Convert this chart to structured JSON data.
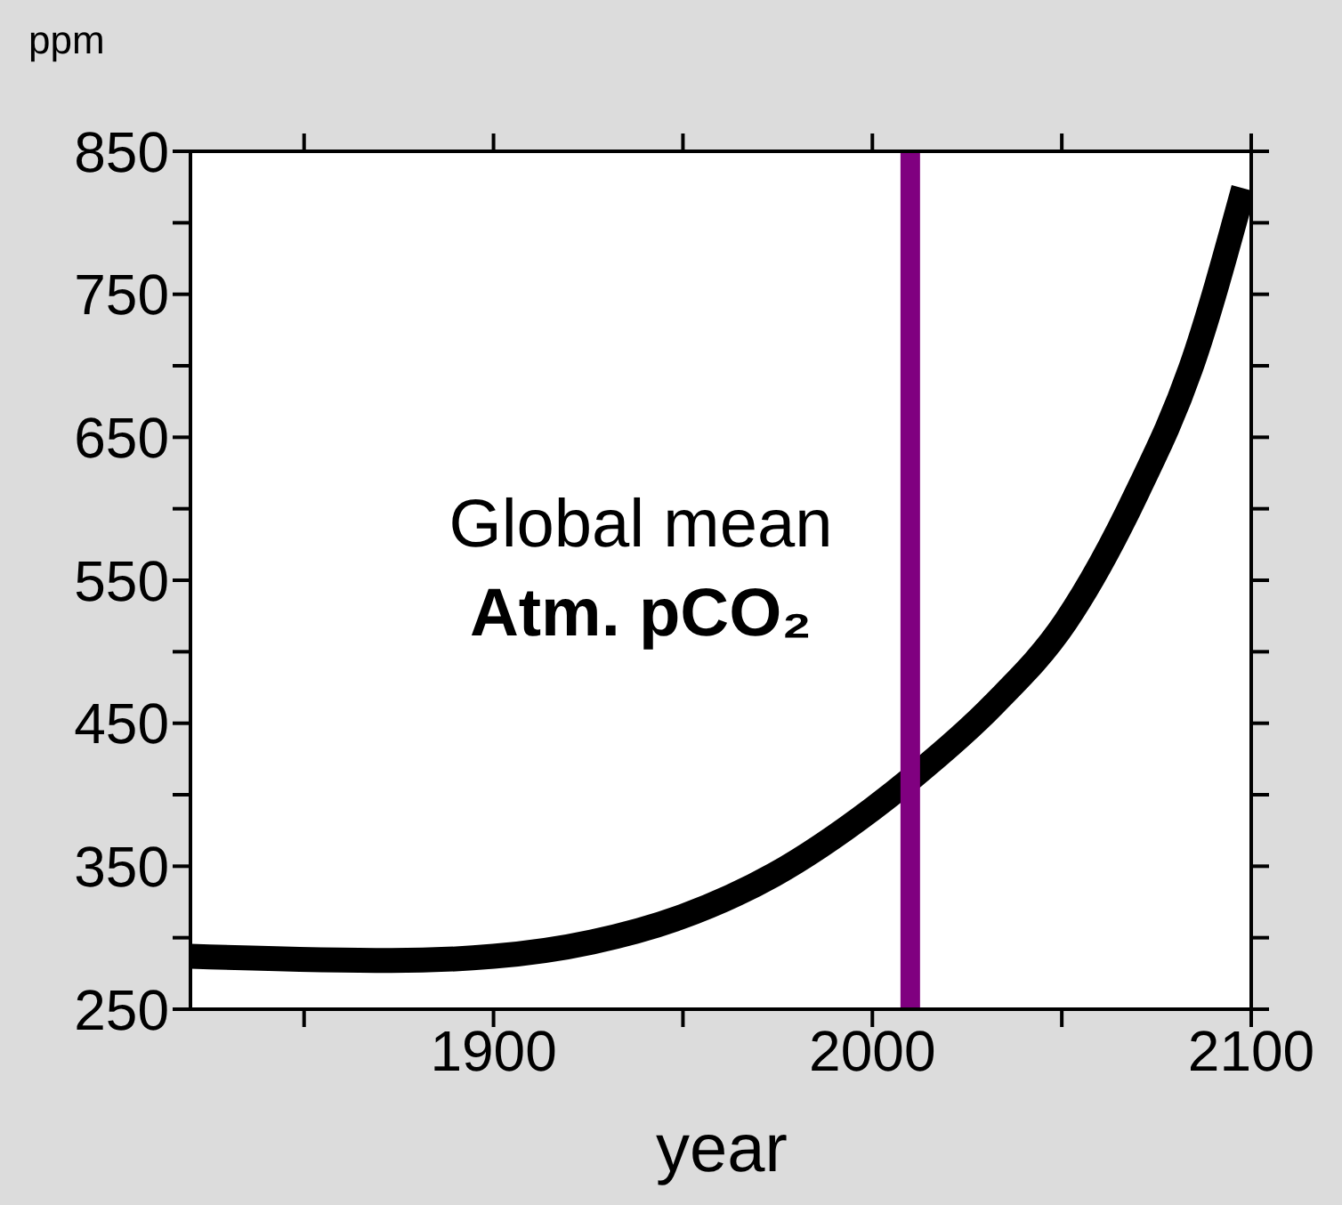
{
  "chart_data": {
    "type": "line",
    "ylabel": "ppm",
    "xlabel": "year",
    "x": [
      1820,
      1873,
      1900,
      1926,
      1949,
      1974,
      2000,
      2011,
      2032,
      2051,
      2070,
      2084,
      2098
    ],
    "series": [
      {
        "color": "#000000",
        "values": [
          287,
          284,
          287,
          297,
          314,
          344,
          390,
          413,
          463,
          521,
          612,
          698,
          824
        ]
      }
    ],
    "xlim": [
      1820,
      2100
    ],
    "xticks": [
      {
        "value": 1850,
        "label": null
      },
      1900,
      {
        "value": 1950,
        "label": null
      },
      2000,
      {
        "value": 2050,
        "label": null
      },
      2100
    ],
    "ylim": [
      250,
      850
    ],
    "yticks": [
      250,
      {
        "value": 300,
        "label": null
      },
      350,
      {
        "value": 400,
        "label": null
      },
      450,
      {
        "value": 500,
        "label": null
      },
      550,
      {
        "value": 600,
        "label": null
      },
      650,
      {
        "value": 700,
        "label": null
      },
      750,
      {
        "value": 800,
        "label": null
      },
      850
    ],
    "ref_lines": [
      {
        "axis": "x",
        "value": 2010,
        "color": "#800080"
      }
    ],
    "annotations": [
      "Global mean",
      "Atm. pCO₂"
    ],
    "legend": false,
    "marker": "none",
    "line_style": "solid"
  }
}
